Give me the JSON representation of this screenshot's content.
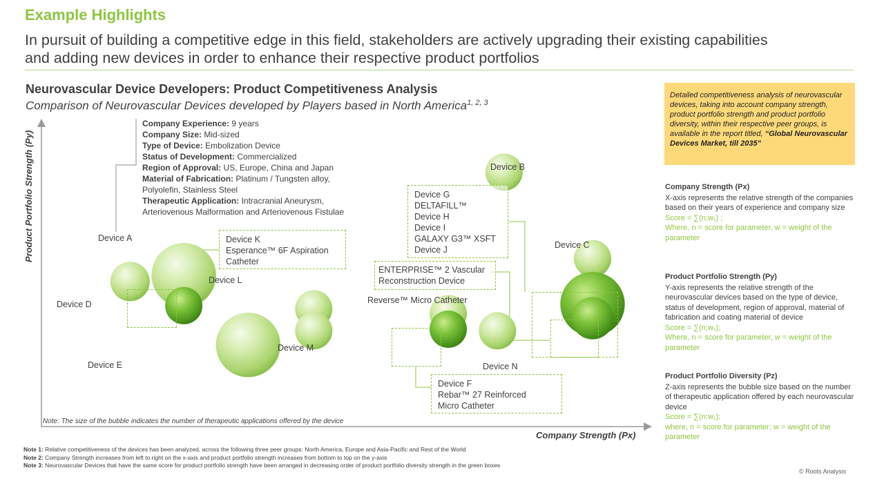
{
  "header": {
    "label": "Example Highlights",
    "headline_line1": "In pursuit of building a competitive edge in this field, stakeholders are actively upgrading their existing capabilities",
    "headline_line2": "and adding new devices in order to enhance their respective product portfolios"
  },
  "colors": {
    "accent": "#8dc63f",
    "callout": "#fdd97a",
    "text": "#404040"
  },
  "chart_data": {
    "type": "scatter",
    "title": "Neurovascular Device Developers: Product Competitiveness Analysis",
    "subtitle": "Comparison of Neurovascular Devices developed by Players based in North America",
    "subtitle_sup": "1, 2, 3",
    "xlabel": "Company Strength (Px)",
    "ylabel": "Product Portfolio Strength (Py)",
    "note": "Note: The size of the bubble indicates the number of therapeutic applications offered by the device",
    "grid": false,
    "legend": "none",
    "points": [
      {
        "label": "Device A",
        "x": 2.17,
        "y": 4.82,
        "z": 3.0
      },
      {
        "label": "Device D",
        "x": 1.35,
        "y": 4.62,
        "z": 1.2
      },
      {
        "label": "Device K",
        "x": 2.17,
        "y": 3.85,
        "z": 1.0
      },
      {
        "label": "Device L",
        "x": 4.15,
        "y": 3.75,
        "z": 1.0
      },
      {
        "label": "Device M",
        "x": 4.15,
        "y": 3.05,
        "z": 1.0
      },
      {
        "label": "Device E",
        "x": 3.15,
        "y": 2.6,
        "z": 3.0
      },
      {
        "label": "Device B",
        "x": 7.05,
        "y": 8.1,
        "z": 1.0
      },
      {
        "label": "Device C",
        "x": 8.4,
        "y": 5.35,
        "z": 1.0
      },
      {
        "label": "Device G",
        "x": 8.4,
        "y": 3.9,
        "z": 3.0
      },
      {
        "label": "Device H",
        "x": 8.4,
        "y": 3.45,
        "z": 1.5
      },
      {
        "label": "Reverse™ Micro Catheter",
        "x": 6.2,
        "y": 3.6,
        "z": 1.0
      },
      {
        "label": "Device F",
        "x": 6.2,
        "y": 3.1,
        "z": 1.0
      },
      {
        "label": "Device N",
        "x": 6.95,
        "y": 3.05,
        "z": 1.0
      }
    ]
  },
  "device_labels": {
    "a": "Device A",
    "b": "Device B",
    "c": "Device C",
    "d": "Device D",
    "e": "Device E",
    "l": "Device L",
    "m": "Device M",
    "n": "Device N",
    "reverse": "Reverse™ Micro Catheter"
  },
  "infobox": [
    {
      "k": "Company Experience:",
      "v": " 9 years"
    },
    {
      "k": "Company Size:",
      "v": " Mid-sized"
    },
    {
      "k": "Type of Device:",
      "v": " Embolization Device"
    },
    {
      "k": "Status of Development:",
      "v": " Commercialized"
    },
    {
      "k": "Region of Approval:",
      "v": " US, Europe, China and Japan"
    },
    {
      "k": "Material of Fabrication:",
      "v": " Platinum / Tungsten alloy,"
    },
    {
      "k": "",
      "v": "Polyolefin, Stainless Steel"
    },
    {
      "k": "Therapeutic Application:",
      "v": " Intracranial Aneurysm,"
    },
    {
      "k": "",
      "v": "Arteriovenous Malformation and Arteriovenous Fistulae"
    }
  ],
  "boxes": {
    "k": [
      "Device K",
      "Esperance™ 6F Aspiration",
      "Catheter"
    ],
    "g": [
      "Device G",
      "DELTAFILL™",
      "Device H",
      "Device I",
      "GALAXY G3™ XSFT",
      "Device J"
    ],
    "enterprise": [
      "ENTERPRISE™ 2 Vascular",
      "Reconstruction Device"
    ],
    "f": [
      "Device F",
      "Rebar™ 27 Reinforced",
      "Micro Catheter"
    ]
  },
  "callout": {
    "text": "Detailed competitiveness analysis of neurovascular devices, taking into account company strength, product portfolio strength and product portfolio diversity, within their respective peer groups, is available in the report titled,",
    "report": "“Global Neurovascular Devices Market, till 2035”"
  },
  "side": [
    {
      "heading": "Company Strength (Px)",
      "body": "X-axis represents the relative strength of the companies based on their years of experience and company size",
      "formula": "Score = ∑(n;w₁)            ;",
      "where": "Where, n = score for parameter, w = weight of the parameter"
    },
    {
      "heading": "Product Portfolio Strength (Py)",
      "body": "Y-axis represents the relative strength of the neurovascular devices based on the type of device, status of development, region of approval, material of fabrication and coating material of device",
      "formula": "Score = ∑(n;w₁);",
      "where": "Where, n = score for parameter, w = weight of the parameter"
    },
    {
      "heading": "Product Portfolio Diversity (Pz)",
      "body": "Z-axis represents the bubble size based on the number of therapeutic application offered by each neurovascular device",
      "formula": "Score = ∑(n;w₁);",
      "where": "where, n = score for parameter; w = weight of the parameter"
    }
  ],
  "notes": [
    {
      "k": "Note 1:",
      "v": " Relative competitiveness of the devices has been analyzed, across the following three peer groups: North America, Europe and Asia-Pacific and Rest of the World"
    },
    {
      "k": "Note 2:",
      "v": " Company Strength increases from left to right on the x-axis and product portfolio strength increases from bottom to top on the y-axis"
    },
    {
      "k": "Note 3:",
      "v": " Neurovascular Devices that have the same score for product portfolio strength have been arranged in decreasing order of product portfolio diversity strength in the green boxes"
    }
  ],
  "copyright": "© Roots Analysis"
}
